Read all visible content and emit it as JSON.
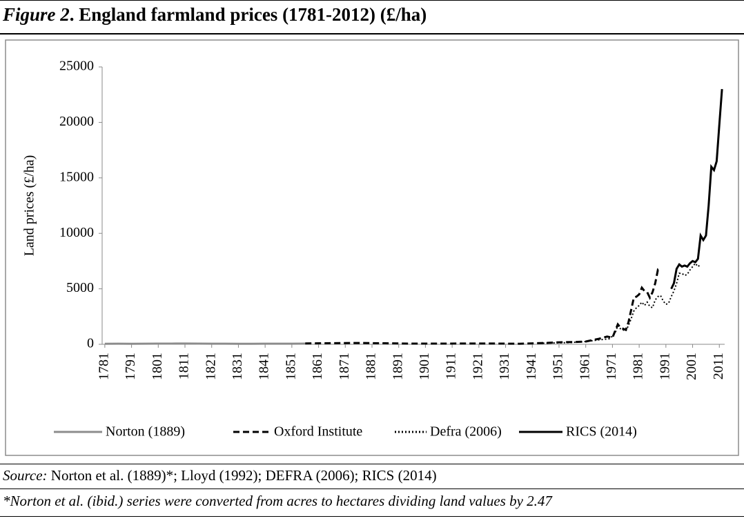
{
  "figure_label": "Figure 2",
  "title": ". England farmland prices (1781-2012) (£/ha)",
  "source_label": "Source:",
  "source": " Norton et al. (1889)*; Lloyd (1992); DEFRA (2006);  RICS (2014)",
  "note": "*Norton et al. (ibid.) series were converted from acres to hectares dividing land values by 2.47",
  "chart_data": {
    "type": "line",
    "ylabel": "Land prices (£/ha)",
    "xlim": [
      1780,
      2013
    ],
    "ylim": [
      0,
      25000
    ],
    "yticks": [
      0,
      5000,
      10000,
      15000,
      20000,
      25000
    ],
    "xticks": [
      1781,
      1791,
      1801,
      1811,
      1821,
      1831,
      1841,
      1851,
      1861,
      1871,
      1881,
      1891,
      1901,
      1911,
      1921,
      1931,
      1941,
      1951,
      1961,
      1971,
      1981,
      1991,
      2001,
      2011
    ],
    "legend": "bottom",
    "series": [
      {
        "name": "Norton (1889)",
        "color": "#8c8c8c",
        "dash": "solid",
        "x": [
          1781,
          1786,
          1791,
          1796,
          1801,
          1806,
          1811,
          1816,
          1821,
          1826,
          1831,
          1836,
          1841,
          1846,
          1851,
          1856
        ],
        "values": [
          50,
          55,
          50,
          55,
          60,
          65,
          70,
          65,
          55,
          55,
          50,
          50,
          55,
          55,
          55,
          60
        ]
      },
      {
        "name": "Oxford Institute",
        "color": "#000000",
        "dash": "dashed",
        "x": [
          1856,
          1866,
          1876,
          1886,
          1896,
          1906,
          1916,
          1926,
          1936,
          1946,
          1951,
          1956,
          1961,
          1966,
          1969,
          1971,
          1973,
          1974,
          1976,
          1977,
          1979,
          1980,
          1981,
          1982,
          1983,
          1984,
          1985,
          1986,
          1987,
          1988,
          1989
        ],
        "values": [
          80,
          100,
          120,
          90,
          60,
          60,
          70,
          70,
          50,
          120,
          180,
          200,
          250,
          500,
          700,
          600,
          1800,
          1500,
          1300,
          2000,
          4200,
          4300,
          4500,
          5100,
          4800,
          4700,
          4200,
          4700,
          5500,
          6700,
          6500
        ]
      },
      {
        "name": "Defra (2006)",
        "color": "#000000",
        "dash": "dotted",
        "x": [
          1945,
          1955,
          1961,
          1966,
          1970,
          1972,
          1973,
          1974,
          1976,
          1977,
          1978,
          1979,
          1980,
          1981,
          1982,
          1983,
          1984,
          1985,
          1986,
          1987,
          1988,
          1989,
          1990,
          1991,
          1992,
          1993,
          1994,
          1995,
          1996,
          1997,
          1998,
          1999,
          2000,
          2001,
          2002,
          2003,
          2004
        ],
        "values": [
          100,
          150,
          250,
          400,
          500,
          1000,
          1700,
          1400,
          1200,
          1700,
          2300,
          3000,
          3300,
          3500,
          3800,
          3500,
          3800,
          3400,
          3300,
          4000,
          4300,
          4400,
          3900,
          3600,
          3700,
          4300,
          4800,
          5500,
          6400,
          6400,
          6200,
          6300,
          6700,
          7000,
          7300,
          7000,
          7200
        ]
      },
      {
        "name": "RICS (2014)",
        "color": "#000000",
        "dash": "solid",
        "x": [
          1993,
          1994,
          1995,
          1996,
          1997,
          1998,
          1999,
          2000,
          2001,
          2002,
          2003,
          2004,
          2005,
          2006,
          2007,
          2008,
          2009,
          2010,
          2011,
          2012
        ],
        "values": [
          5000,
          5500,
          6800,
          7200,
          7000,
          7100,
          7000,
          7300,
          7500,
          7400,
          7700,
          9800,
          9400,
          9800,
          12500,
          16000,
          15700,
          16500,
          19800,
          23000
        ]
      }
    ]
  }
}
